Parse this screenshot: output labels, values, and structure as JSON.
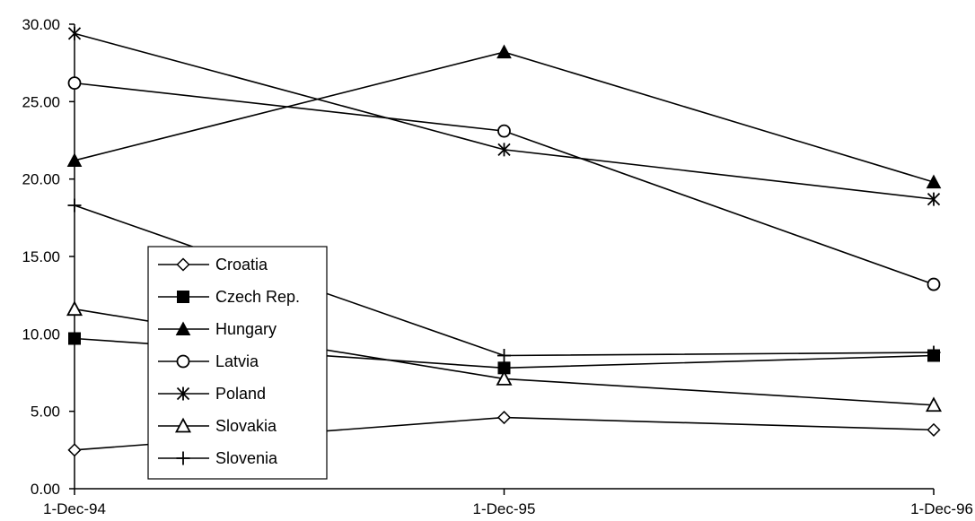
{
  "chart_data": {
    "type": "line",
    "title": "",
    "xlabel": "",
    "ylabel": "",
    "categories": [
      "1-Dec-94",
      "1-Dec-95",
      "1-Dec-96"
    ],
    "y_ticks": [
      "0.00",
      "5.00",
      "10.00",
      "15.00",
      "20.00",
      "25.00",
      "30.00"
    ],
    "ylim": [
      0,
      30
    ],
    "grid": false,
    "legend_position": "left",
    "series": [
      {
        "name": "Croatia",
        "marker": "diamond-open",
        "values": [
          2.5,
          4.6,
          3.8
        ]
      },
      {
        "name": "Czech Rep.",
        "marker": "square-filled",
        "values": [
          9.7,
          7.8,
          8.6
        ]
      },
      {
        "name": "Hungary",
        "marker": "triangle-filled",
        "values": [
          21.2,
          28.2,
          19.8
        ]
      },
      {
        "name": "Latvia",
        "marker": "circle-open",
        "values": [
          26.2,
          23.1,
          13.2
        ]
      },
      {
        "name": "Poland",
        "marker": "asterisk",
        "values": [
          29.4,
          21.9,
          18.7
        ]
      },
      {
        "name": "Slovakia",
        "marker": "triangle-open",
        "values": [
          11.6,
          7.1,
          5.4
        ]
      },
      {
        "name": "Slovenia",
        "marker": "plus",
        "values": [
          18.3,
          8.6,
          8.8
        ]
      }
    ]
  }
}
